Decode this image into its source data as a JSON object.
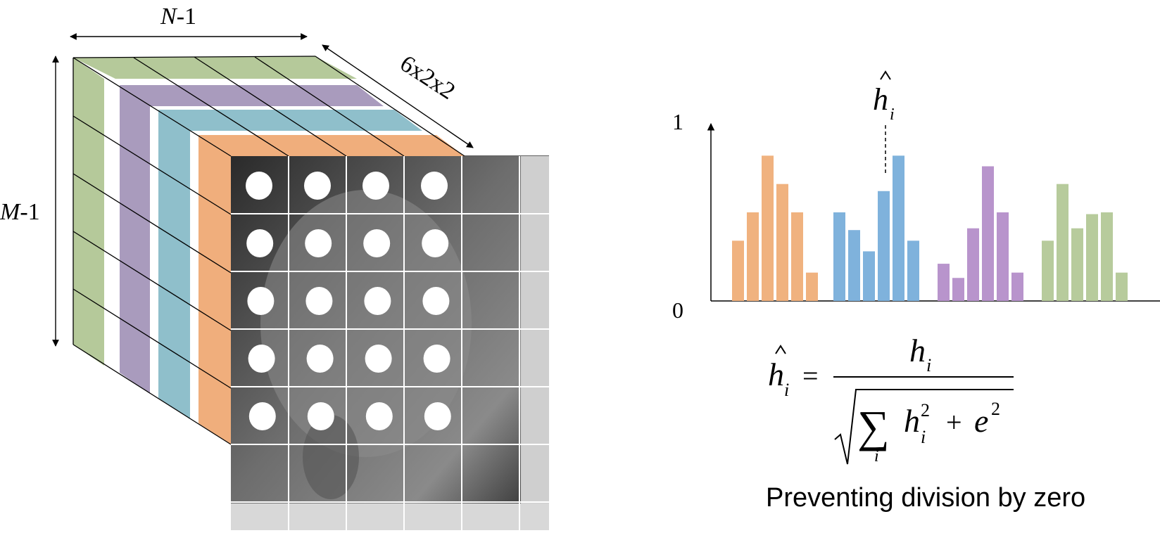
{
  "cube": {
    "width_label_var": "N",
    "width_label_rest": "-1",
    "height_label_var": "M",
    "height_label_rest": "-1",
    "depth_label": "6x2x2",
    "layer_colors": [
      "#b5c99a",
      "#a99bbd",
      "#8fbfcb",
      "#f0ae7c"
    ],
    "grid_cols": 4,
    "grid_rows": 5,
    "photo_note": "grayscale portrait photograph"
  },
  "histogram": {
    "y_top": "1",
    "y_bottom": "0",
    "annotation_var": "h",
    "annotation_sub": "i",
    "groups": [
      {
        "color": "#f0b27f",
        "values": [
          0.34,
          0.5,
          0.82,
          0.66,
          0.5,
          0.16
        ]
      },
      {
        "color": "#7fb2dc",
        "values": [
          0.5,
          0.4,
          0.28,
          0.62,
          0.82,
          0.34
        ]
      },
      {
        "color": "#b894cc",
        "values": [
          0.21,
          0.13,
          0.41,
          0.76,
          0.5,
          0.16
        ]
      },
      {
        "color": "#b7cb9c",
        "values": [
          0.34,
          0.66,
          0.41,
          0.49,
          0.5,
          0.16
        ]
      }
    ]
  },
  "formula": {
    "lhs_var": "h",
    "lhs_sub": "i",
    "equals": "=",
    "num_var": "h",
    "num_sub": "i",
    "sum_symbol": "∑",
    "sum_index": "i",
    "term_var": "h",
    "term_sub": "i",
    "term_exp": "2",
    "plus": "+",
    "eps_var": "e",
    "eps_exp": "2"
  },
  "caption": "Preventing division by zero"
}
